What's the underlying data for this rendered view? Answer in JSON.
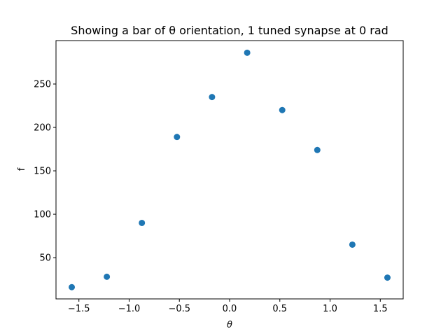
{
  "chart_data": {
    "type": "scatter",
    "title": "Showing a bar of θ orientation, 1 tuned synapse at 0 rad",
    "xlabel": "θ",
    "ylabel": "f",
    "xlim": [
      -1.728,
      1.728
    ],
    "ylim": [
      2.5,
      300
    ],
    "xticks": [
      -1.5,
      -1.0,
      -0.5,
      0.0,
      0.5,
      1.0,
      1.5
    ],
    "xtick_labels": [
      "−1.5",
      "−1.0",
      "−0.5",
      "0.0",
      "0.5",
      "1.0",
      "1.5"
    ],
    "yticks": [
      50,
      100,
      150,
      200,
      250
    ],
    "ytick_labels": [
      "50",
      "100",
      "150",
      "200",
      "250"
    ],
    "grid": false,
    "series": [
      {
        "color": "#1f77b4",
        "x": [
          -1.571,
          -1.222,
          -0.873,
          -0.524,
          -0.175,
          0.175,
          0.524,
          0.873,
          1.222,
          1.571
        ],
        "y": [
          16,
          28,
          90,
          189,
          235,
          286,
          220,
          174,
          65,
          27
        ]
      }
    ]
  }
}
